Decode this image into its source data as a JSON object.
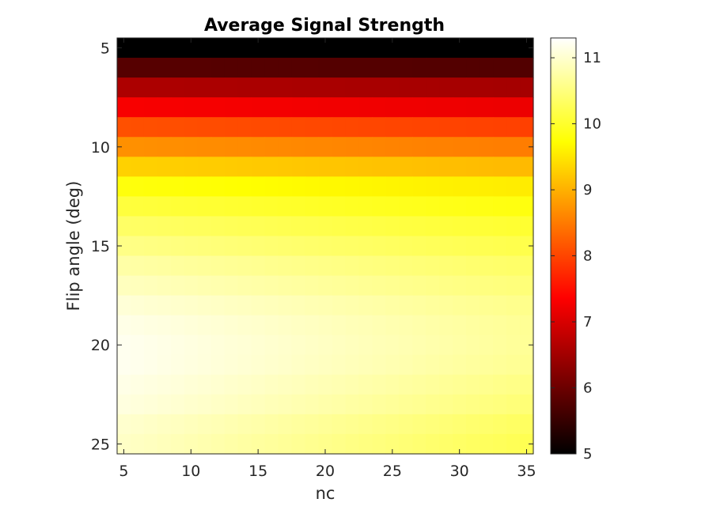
{
  "chart_data": {
    "type": "heatmap",
    "title": "Average Signal Strength",
    "xlabel": "nc",
    "ylabel": "Flip angle (deg)",
    "x_range": [
      5,
      35
    ],
    "y_range": [
      5,
      25
    ],
    "xticks": [
      5,
      10,
      15,
      20,
      25,
      30,
      35
    ],
    "yticks": [
      5,
      10,
      15,
      20,
      25
    ],
    "colormap": "hot",
    "color_range": [
      5,
      11.3
    ],
    "colorbar_ticks": [
      5,
      6,
      7,
      8,
      9,
      10,
      11
    ],
    "colorbar_position": "right",
    "grid": false,
    "description_values": {
      "flip_angle_profile": [
        {
          "flip_angle": 5,
          "value": 5.0
        },
        {
          "flip_angle": 6,
          "value": 5.8
        },
        {
          "flip_angle": 7,
          "value": 6.6
        },
        {
          "flip_angle": 8,
          "value": 7.3
        },
        {
          "flip_angle": 9,
          "value": 8.1
        },
        {
          "flip_angle": 10,
          "value": 8.7
        },
        {
          "flip_angle": 11,
          "value": 9.3
        },
        {
          "flip_angle": 12,
          "value": 9.8
        },
        {
          "flip_angle": 13,
          "value": 10.1
        },
        {
          "flip_angle": 14,
          "value": 10.35
        },
        {
          "flip_angle": 15,
          "value": 10.55
        },
        {
          "flip_angle": 16,
          "value": 10.75
        },
        {
          "flip_angle": 17,
          "value": 10.9
        },
        {
          "flip_angle": 18,
          "value": 11.05
        },
        {
          "flip_angle": 19,
          "value": 11.15
        },
        {
          "flip_angle": 20,
          "value": 11.2
        },
        {
          "flip_angle": 21,
          "value": 11.2
        },
        {
          "flip_angle": 22,
          "value": 11.15
        },
        {
          "flip_angle": 23,
          "value": 11.1
        },
        {
          "flip_angle": 24,
          "value": 11.0
        },
        {
          "flip_angle": 25,
          "value": 10.95
        }
      ],
      "nc_falloff_per_unit": 0.012
    }
  }
}
